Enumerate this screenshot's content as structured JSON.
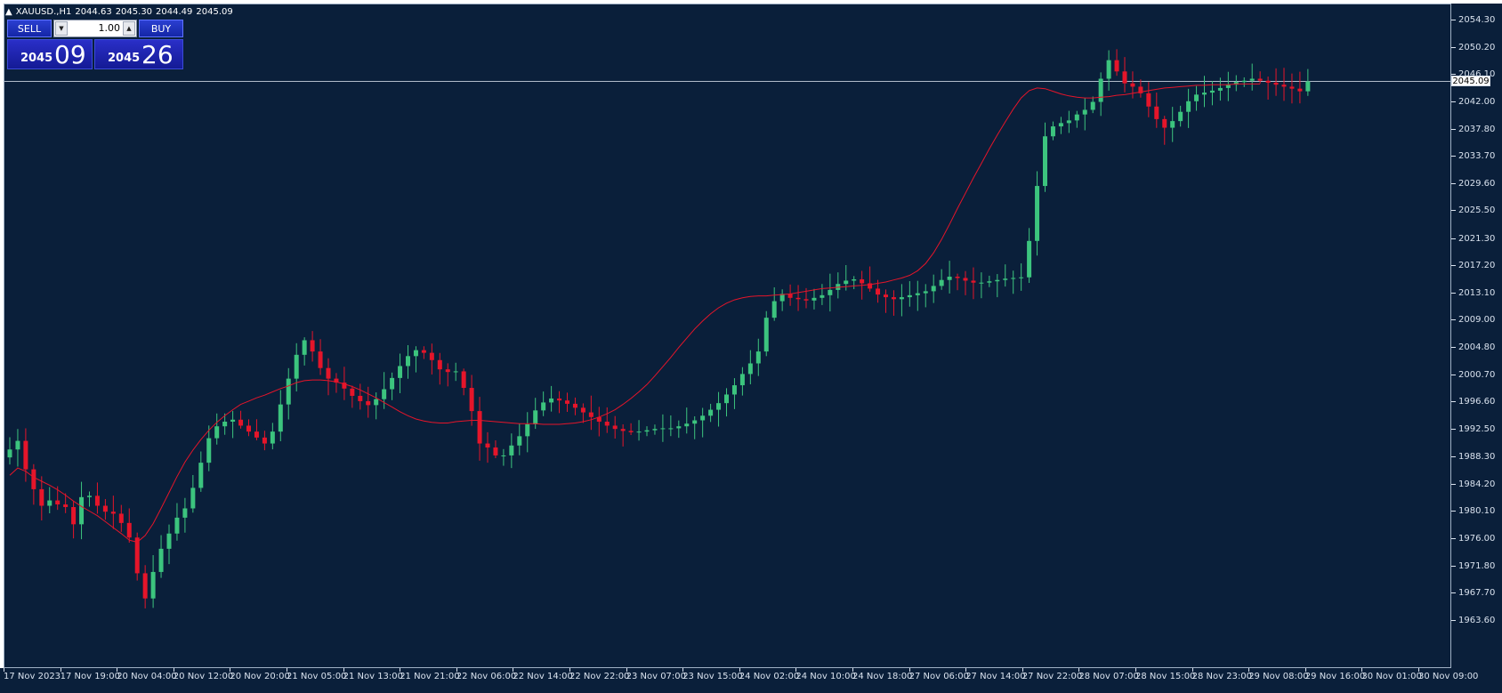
{
  "header": {
    "symbol": "XAUUSD.,H1",
    "open": "2044.63",
    "high": "2045.30",
    "low": "2044.49",
    "close": "2045.09",
    "collapse_icon": "triangle-up-icon"
  },
  "trade_panel": {
    "sell_label": "SELL",
    "buy_label": "BUY",
    "lot": "1.00",
    "sell_price_big": "2045",
    "sell_price_pips": "09",
    "buy_price_big": "2045",
    "buy_price_pips": "26",
    "down_icon": "arrow-down-icon",
    "up_icon": "arrow-up-icon"
  },
  "current_price": "2045.09",
  "colors": {
    "background": "#0a1f3a",
    "bull": "#3cc47e",
    "bear": "#e5152a",
    "ma": "#e5152a",
    "axis_text": "#d9e2ee"
  },
  "chart_data": {
    "type": "candlestick",
    "symbol": "XAUUSD.",
    "timeframe": "H1",
    "ylim": [
      1963.6,
      2054.3
    ],
    "y_ticks": [
      "2054.30",
      "2050.20",
      "2046.10",
      "2042.00",
      "2037.80",
      "2033.70",
      "2029.60",
      "2025.50",
      "2021.30",
      "2017.20",
      "2013.10",
      "2009.00",
      "2004.80",
      "2000.70",
      "1996.60",
      "1992.50",
      "1988.30",
      "1984.20",
      "1980.10",
      "1976.00",
      "1971.80",
      "1967.70",
      "1963.60"
    ],
    "x_ticks": [
      "17 Nov 2023",
      "17 Nov 19:00",
      "20 Nov 04:00",
      "20 Nov 12:00",
      "20 Nov 20:00",
      "21 Nov 05:00",
      "21 Nov 13:00",
      "21 Nov 21:00",
      "22 Nov 06:00",
      "22 Nov 14:00",
      "22 Nov 22:00",
      "23 Nov 07:00",
      "23 Nov 15:00",
      "24 Nov 02:00",
      "24 Nov 10:00",
      "24 Nov 18:00",
      "27 Nov 06:00",
      "27 Nov 14:00",
      "27 Nov 22:00",
      "28 Nov 07:00",
      "28 Nov 15:00",
      "28 Nov 23:00",
      "29 Nov 08:00",
      "29 Nov 16:00",
      "30 Nov 01:00",
      "30 Nov 09:00"
    ],
    "series": [
      {
        "name": "",
        "kind": "ohlc",
        "close": [
          1989.5,
          1990.8,
          1986.5,
          1983.5,
          1981.0,
          1981.8,
          1981.2,
          1980.8,
          1978.2,
          1982.3,
          1982.5,
          1981.0,
          1980.1,
          1979.8,
          1978.4,
          1976.2,
          1970.8,
          1967.0,
          1971.0,
          1974.5,
          1976.8,
          1979.2,
          1980.6,
          1983.7,
          1987.5,
          1991.2,
          1993.0,
          1993.7,
          1994.0,
          1993.1,
          1992.2,
          1991.3,
          1990.4,
          1992.2,
          1996.3,
          2000.2,
          2003.8,
          2006.0,
          2004.3,
          2001.8,
          2000.2,
          1999.6,
          1998.7,
          1997.6,
          1996.8,
          1996.2,
          1997.1,
          1998.6,
          2000.3,
          2002.1,
          2003.6,
          2004.5,
          2004.1,
          2003.0,
          2001.6,
          2001.2,
          2001.3,
          1998.8,
          1995.3,
          1990.4,
          1989.8,
          1988.6,
          1988.6,
          1990.1,
          1991.5,
          1993.3,
          1995.4,
          1996.6,
          1997.2,
          1996.9,
          1996.4,
          1995.8,
          1995.1,
          1994.4,
          1993.7,
          1993.1,
          1992.6,
          1992.3,
          1992.1,
          1992.2,
          1992.4,
          1992.6,
          1992.7,
          1992.7,
          1993.0,
          1993.4,
          1993.9,
          1994.6,
          1995.5,
          1996.5,
          1997.8,
          1999.2,
          2000.9,
          2002.5,
          2004.3,
          2009.4,
          2011.9,
          2013.0,
          2012.4,
          2012.2,
          2012.0,
          2012.4,
          2012.8,
          2013.6,
          2014.5,
          2015.0,
          2015.2,
          2014.6,
          2013.8,
          2012.9,
          2012.5,
          2012.2,
          2012.5,
          2012.8,
          2013.1,
          2013.4,
          2014.2,
          2015.1,
          2015.6,
          2015.4,
          2015.0,
          2014.7,
          2014.7,
          2014.9,
          2015.1,
          2015.3,
          2015.4,
          2015.5,
          2021.0,
          2029.3,
          2036.8,
          2038.3,
          2038.8,
          2039.2,
          2040.1,
          2040.8,
          2042.0,
          2045.5,
          2048.3,
          2046.6,
          2044.8,
          2044.3,
          2043.3,
          2041.3,
          2039.4,
          2038.1,
          2039.1,
          2040.5,
          2042.1,
          2043.1,
          2043.4,
          2043.7,
          2044.1,
          2044.6,
          2045.0,
          2045.2,
          2045.5,
          2045.2,
          2044.9,
          2044.6,
          2044.3,
          2044.0,
          2043.6,
          2045.09
        ]
      },
      {
        "name": "",
        "kind": "moving_average",
        "values": [
          1985.6,
          1986.7,
          1986.2,
          1985.3,
          1984.7,
          1984.1,
          1983.4,
          1982.6,
          1981.7,
          1980.9,
          1980.2,
          1979.5,
          1978.6,
          1977.7,
          1976.8,
          1975.8,
          1975.5,
          1976.5,
          1978.3,
          1980.6,
          1983.0,
          1985.4,
          1987.6,
          1989.4,
          1991.0,
          1992.4,
          1993.6,
          1994.6,
          1995.5,
          1996.3,
          1996.8,
          1997.3,
          1997.7,
          1998.2,
          1998.7,
          1999.1,
          1999.6,
          1999.9,
          2000.0,
          2000.0,
          1999.9,
          1999.7,
          1999.4,
          1999.0,
          1998.5,
          1997.9,
          1997.3,
          1996.6,
          1995.9,
          1995.2,
          1994.6,
          1994.1,
          1993.8,
          1993.6,
          1993.5,
          1993.5,
          1993.7,
          1993.8,
          1993.9,
          1993.9,
          1993.8,
          1993.7,
          1993.6,
          1993.5,
          1993.4,
          1993.4,
          1993.4,
          1993.3,
          1993.3,
          1993.3,
          1993.4,
          1993.5,
          1993.7,
          1994.0,
          1994.4,
          1994.9,
          1995.5,
          1996.3,
          1997.2,
          1998.2,
          1999.3,
          2000.6,
          2002.0,
          2003.4,
          2004.9,
          2006.3,
          2007.7,
          2008.9,
          2010.0,
          2010.9,
          2011.6,
          2012.1,
          2012.4,
          2012.6,
          2012.7,
          2012.7,
          2012.8,
          2012.9,
          2013.0,
          2013.2,
          2013.4,
          2013.6,
          2013.8,
          2013.9,
          2014.0,
          2014.1,
          2014.2,
          2014.3,
          2014.4,
          2014.6,
          2014.8,
          2015.1,
          2015.4,
          2015.8,
          2016.5,
          2017.6,
          2019.2,
          2021.2,
          2023.5,
          2025.9,
          2028.2,
          2030.5,
          2032.7,
          2034.9,
          2037.0,
          2039.0,
          2040.9,
          2042.6,
          2043.7,
          2044.1,
          2044.0,
          2043.6,
          2043.2,
          2042.9,
          2042.7,
          2042.6,
          2042.6,
          2042.7,
          2042.8,
          2043.0,
          2043.1,
          2043.3,
          2043.5,
          2043.7,
          2043.9,
          2044.1,
          2044.2,
          2044.3,
          2044.4,
          2044.5,
          2044.5,
          2044.6,
          2044.6,
          2044.6,
          2044.7,
          2044.7,
          2044.7,
          2044.7
        ]
      }
    ]
  }
}
